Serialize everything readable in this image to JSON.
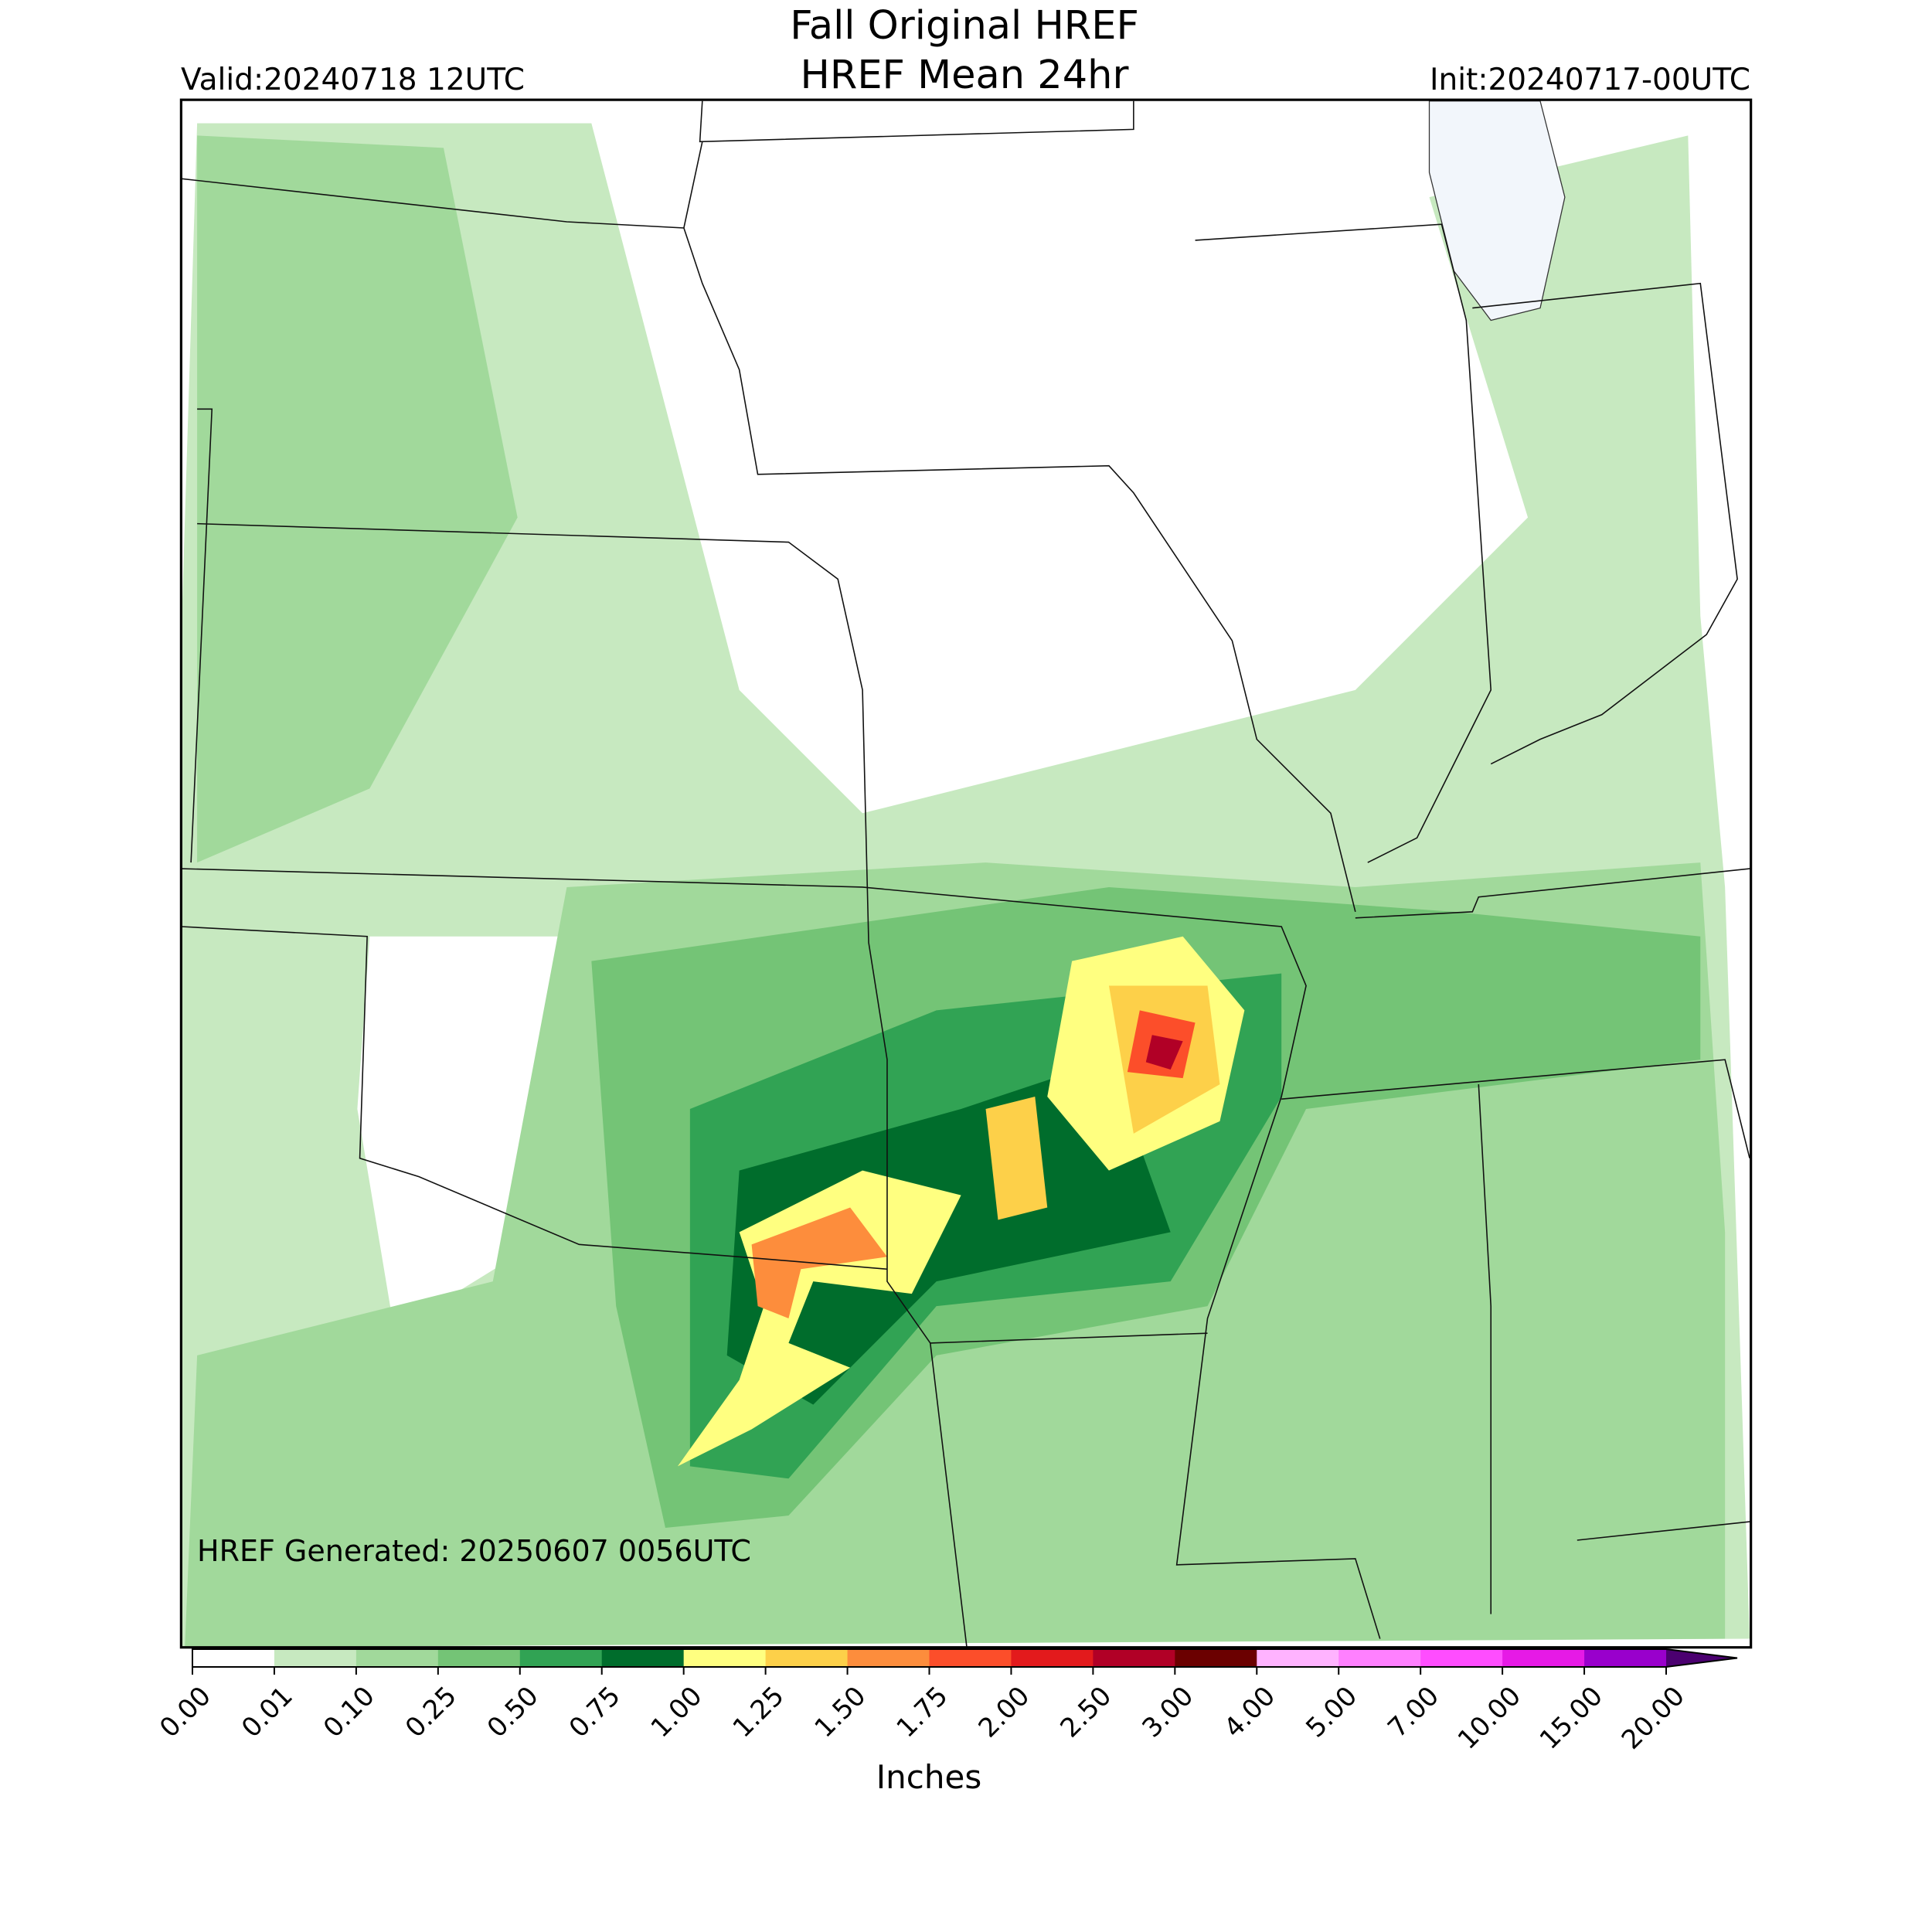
{
  "header": {
    "title_lines": [
      "Fall Original HREF",
      "HREF Mean 24hr"
    ],
    "valid": "Valid:20240718 12UTC",
    "init": "Init:20240717-00UTC"
  },
  "annotation": "HREF Generated: 20250607 0056UTC",
  "colorbar": {
    "label": "Inches",
    "ticks": [
      {
        "value": 0,
        "label": "0.00"
      },
      {
        "value": 0.01,
        "label": "0.01"
      },
      {
        "value": 0.1,
        "label": "0.10"
      },
      {
        "value": 0.25,
        "label": "0.25"
      },
      {
        "value": 0.5,
        "label": "0.50"
      },
      {
        "value": 0.75,
        "label": "0.75"
      },
      {
        "value": 1,
        "label": "1.00"
      },
      {
        "value": 1.25,
        "label": "1.25"
      },
      {
        "value": 1.5,
        "label": "1.50"
      },
      {
        "value": 1.75,
        "label": "1.75"
      },
      {
        "value": 2,
        "label": "2.00"
      },
      {
        "value": 2.5,
        "label": "2.50"
      },
      {
        "value": 3,
        "label": "3.00"
      },
      {
        "value": 4,
        "label": "4.00"
      },
      {
        "value": 5,
        "label": "5.00"
      },
      {
        "value": 7,
        "label": "7.00"
      },
      {
        "value": 10,
        "label": "10.00"
      },
      {
        "value": 15,
        "label": "15.00"
      },
      {
        "value": 20,
        "label": "20.00"
      }
    ],
    "colors": [
      "#ffffff",
      "#c7e9c0",
      "#a1d99b",
      "#74c476",
      "#31a354",
      "#006d2c",
      "#ffff80",
      "#fdd049",
      "#fd8d3c",
      "#fc4e2a",
      "#e31a1c",
      "#b10026",
      "#6b0000",
      "#ffb3ff",
      "#ff80ff",
      "#ff4dff",
      "#e61ae6",
      "#9900cc"
    ],
    "extend_color": "#4b0070"
  }
}
